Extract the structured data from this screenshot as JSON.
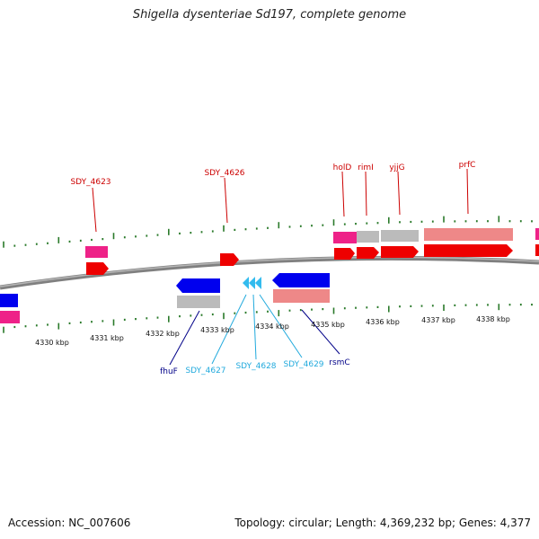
{
  "title": "Shigella dysenteriae Sd197, complete genome",
  "accession": "Accession: NC_007606",
  "summary": "Topology: circular; Length: 4,369,232 bp; Genes: 4,377",
  "colors": {
    "backbone": "#808080",
    "tick": "#2a7a2a",
    "label_red": "#cc0000",
    "label_navy": "#000088",
    "label_cyan": "#22aadd",
    "cds_forward": "#ee0000",
    "cds_reverse": "#0000ee",
    "feature_pink": "#ee8888",
    "feature_magenta": "#ee2288",
    "feature_gray": "#bbbbbb",
    "hypo_cyan": "#33bbee"
  },
  "scale_labels": [
    "4330 kbp",
    "4331 kbp",
    "4332 kbp",
    "4333 kbp",
    "4334 kbp",
    "4335 kbp",
    "4336 kbp",
    "4337 kbp",
    "4338 kbp"
  ],
  "gene_labels": {
    "SDY_4623": "SDY_4623",
    "SDY_4626": "SDY_4626",
    "holD": "holD",
    "rimI": "rimI",
    "yjjG": "yjjG",
    "prfC": "prfC",
    "fhuF": "fhuF",
    "SDY_4627": "SDY_4627",
    "SDY_4628": "SDY_4628",
    "SDY_4629": "SDY_4629",
    "rsmC": "rsmC"
  }
}
